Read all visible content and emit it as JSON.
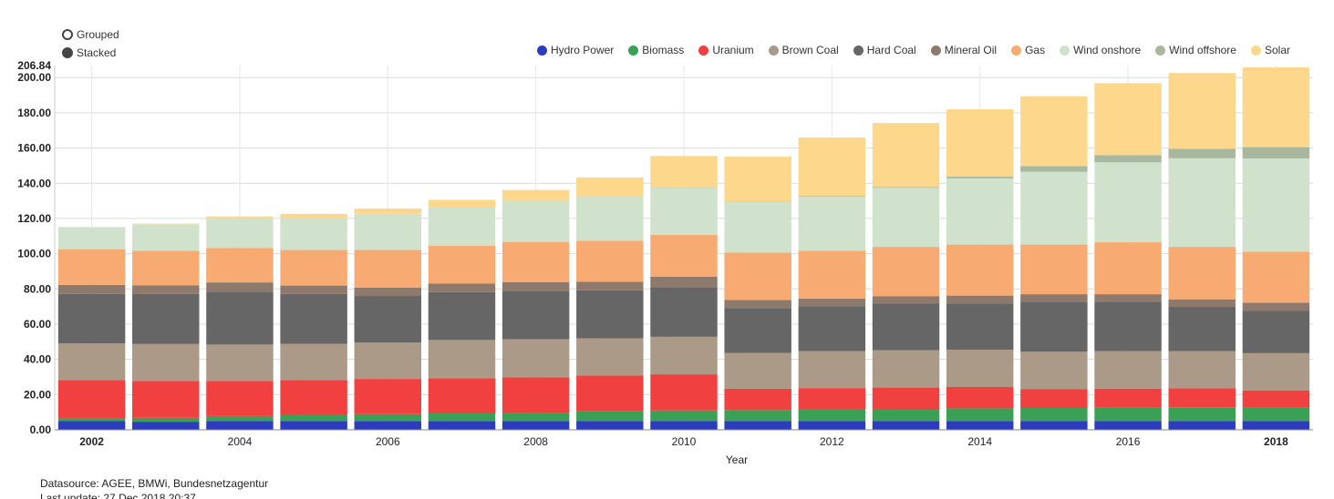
{
  "controls": {
    "grouped_label": "Grouped",
    "stacked_label": "Stacked",
    "selected": "stacked"
  },
  "footer": {
    "datasource": "Datasource: AGEE, BMWi, Bundesnetzagentur",
    "last_update": "Last update: 27 Dec 2018 20:37"
  },
  "chart_data": {
    "type": "bar",
    "stacked": true,
    "xlabel": "Year",
    "ylabel": "",
    "ylim": [
      0,
      206.84
    ],
    "ymax_label": "206.84",
    "yticks": [
      "0.00",
      "20.00",
      "40.00",
      "60.00",
      "80.00",
      "100.00",
      "120.00",
      "140.00",
      "160.00",
      "180.00",
      "200.00"
    ],
    "x_tick_labels": [
      "2002",
      "2004",
      "2006",
      "2008",
      "2010",
      "2012",
      "2014",
      "2016",
      "2018"
    ],
    "x_bold_ticks": [
      "2002",
      "2018"
    ],
    "grid": true,
    "legend_position": "top-right",
    "categories": [
      "2002",
      "2003",
      "2004",
      "2005",
      "2006",
      "2007",
      "2008",
      "2009",
      "2010",
      "2011",
      "2012",
      "2013",
      "2014",
      "2015",
      "2016",
      "2017",
      "2018"
    ],
    "series": [
      {
        "name": "Hydro Power",
        "color": "#2d3cbf",
        "values": [
          4.9,
          4.6,
          5.0,
          5.0,
          5.0,
          5.0,
          5.0,
          5.0,
          5.0,
          5.0,
          5.0,
          5.0,
          5.0,
          5.0,
          5.0,
          5.0,
          5.0
        ]
      },
      {
        "name": "Biomass",
        "color": "#3aa055",
        "values": [
          1.6,
          2.2,
          2.8,
          3.3,
          3.9,
          4.3,
          4.8,
          5.4,
          6.0,
          6.2,
          6.6,
          6.9,
          7.2,
          7.4,
          7.6,
          7.8,
          7.9
        ]
      },
      {
        "name": "Uranium",
        "color": "#f04040",
        "values": [
          21.8,
          21.0,
          20.0,
          20.0,
          20.0,
          20.0,
          20.0,
          20.4,
          20.5,
          12.1,
          12.1,
          12.1,
          12.1,
          10.8,
          10.8,
          10.8,
          9.5
        ]
      },
      {
        "name": "Brown Coal",
        "color": "#ac9a88",
        "values": [
          20.7,
          20.9,
          20.6,
          20.5,
          20.6,
          21.7,
          21.6,
          21.1,
          21.3,
          20.3,
          21.0,
          21.2,
          21.2,
          21.1,
          21.3,
          21.1,
          21.1
        ]
      },
      {
        "name": "Hard Coal",
        "color": "#666666",
        "values": [
          28.2,
          28.4,
          30.0,
          28.3,
          26.5,
          27.2,
          27.6,
          27.3,
          28.3,
          25.6,
          25.4,
          26.4,
          26.3,
          28.5,
          28.0,
          25.1,
          24.0
        ]
      },
      {
        "name": "Mineral Oil",
        "color": "#8e7a6c",
        "values": [
          5.1,
          5.0,
          5.3,
          4.8,
          4.8,
          4.8,
          4.9,
          4.9,
          5.8,
          4.5,
          4.4,
          4.3,
          4.4,
          4.2,
          4.3,
          4.3,
          4.7
        ]
      },
      {
        "name": "Gas",
        "color": "#f7ab72",
        "values": [
          20.3,
          19.6,
          19.6,
          20.2,
          21.3,
          21.6,
          22.8,
          23.3,
          23.8,
          26.9,
          27.2,
          28.0,
          29.0,
          28.2,
          29.5,
          29.8,
          29.0
        ]
      },
      {
        "name": "Wind onshore",
        "color": "#d1e2cc",
        "values": [
          12.2,
          15.0,
          16.8,
          18.4,
          20.6,
          22.1,
          23.4,
          25.2,
          26.7,
          28.9,
          30.9,
          33.5,
          37.6,
          41.3,
          45.4,
          50.3,
          52.9
        ]
      },
      {
        "name": "Wind offshore",
        "color": "#a7b89e",
        "values": [
          0,
          0,
          0,
          0,
          0,
          0,
          0,
          0.1,
          0.2,
          0.2,
          0.3,
          0.5,
          1.0,
          3.3,
          4.1,
          5.4,
          6.4
        ]
      },
      {
        "name": "Solar",
        "color": "#fdd78b",
        "values": [
          0.3,
          0.4,
          1.1,
          2.1,
          2.9,
          3.9,
          6.1,
          10.6,
          17.9,
          25.4,
          33.1,
          36.3,
          38.2,
          39.6,
          40.8,
          43.0,
          45.3
        ]
      }
    ]
  }
}
